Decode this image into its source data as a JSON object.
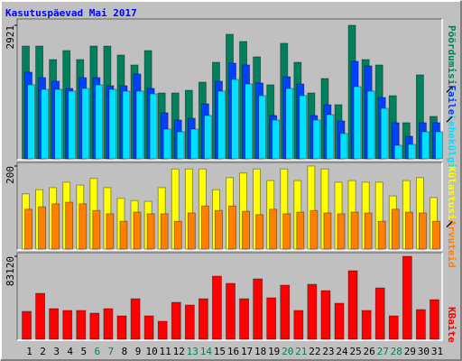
{
  "title": "Kasutuspäevad Mai 2017",
  "chart_data": [
    {
      "type": "bar",
      "ylim": [
        0,
        2921
      ],
      "yticks": [
        2921
      ],
      "series": [
        {
          "name": "Pöördumisi",
          "color": "#00805c",
          "values": [
            2467,
            2467,
            2171,
            2368,
            2171,
            2467,
            2467,
            2270,
            2053,
            2368,
            1441,
            1441,
            1500,
            1678,
            2112,
            2724,
            2566,
            2231,
            1619,
            2527,
            2112,
            1441,
            1757,
            1184,
            2921,
            2171,
            2053,
            1382,
            790,
            1836,
            928
          ]
        },
        {
          "name": "Faile",
          "color": "#0040ff",
          "values": [
            1895,
            1777,
            1698,
            1540,
            1777,
            1777,
            1599,
            1599,
            1856,
            1540,
            1007,
            849,
            888,
            1204,
            1698,
            2092,
            2053,
            1658,
            948,
            1796,
            1638,
            948,
            1184,
            829,
            2132,
            2033,
            1342,
            790,
            494,
            790,
            790
          ]
        },
        {
          "name": "Lehekülgi",
          "color": "#00e0ff",
          "values": [
            1619,
            1520,
            1520,
            1481,
            1540,
            1619,
            1520,
            1481,
            1481,
            1421,
            651,
            592,
            651,
            948,
            1481,
            1737,
            1638,
            1382,
            849,
            1540,
            1382,
            849,
            967,
            553,
            1579,
            1481,
            1105,
            296,
            316,
            592,
            592
          ]
        }
      ]
    },
    {
      "type": "bar",
      "ylim": [
        0,
        200
      ],
      "yticks": [
        200
      ],
      "series": [
        {
          "name": "Külastusi",
          "color": "#ffff00",
          "values": [
            133,
            143,
            148,
            161,
            154,
            170,
            148,
            122,
            117,
            115,
            148,
            193,
            193,
            193,
            143,
            172,
            183,
            193,
            165,
            193,
            165,
            200,
            193,
            161,
            165,
            161,
            161,
            128,
            165,
            172,
            124
          ]
        },
        {
          "name": "Arvuteid",
          "color": "#ff8000",
          "values": [
            96,
            102,
            109,
            113,
            109,
            93,
            85,
            67,
            89,
            85,
            85,
            67,
            87,
            104,
            93,
            104,
            91,
            83,
            96,
            85,
            89,
            93,
            87,
            85,
            89,
            87,
            67,
            96,
            89,
            87,
            67
          ]
        }
      ]
    },
    {
      "type": "bar",
      "ylim": [
        0,
        83120
      ],
      "yticks": [
        83120
      ],
      "categories": [
        "1",
        "2",
        "3",
        "4",
        "5",
        "6",
        "7",
        "8",
        "9",
        "10",
        "11",
        "12",
        "13",
        "14",
        "15",
        "16",
        "17",
        "18",
        "19",
        "20",
        "21",
        "22",
        "23",
        "24",
        "25",
        "26",
        "27",
        "28",
        "29",
        "30",
        "31"
      ],
      "category_colors": [
        "#000000",
        "#000000",
        "#000000",
        "#000000",
        "#000000",
        "#00805c",
        "#00805c",
        "#000000",
        "#000000",
        "#000000",
        "#000000",
        "#000000",
        "#00805c",
        "#00805c",
        "#000000",
        "#000000",
        "#000000",
        "#000000",
        "#000000",
        "#00805c",
        "#00805c",
        "#000000",
        "#000000",
        "#000000",
        "#000000",
        "#000000",
        "#00805c",
        "#00805c",
        "#000000",
        "#000000",
        "#000000"
      ],
      "series": [
        {
          "name": "KBaite",
          "color": "#ff0000",
          "values": [
            28009,
            46079,
            30719,
            28912,
            28912,
            26202,
            30719,
            23491,
            40658,
            23491,
            18070,
            37044,
            34333,
            40658,
            63245,
            56017,
            40658,
            60535,
            41561,
            54210,
            28912,
            55114,
            48789,
            36140,
            68666,
            28912,
            51500,
            23491,
            83120,
            29816,
            39754
          ]
        }
      ]
    }
  ]
}
